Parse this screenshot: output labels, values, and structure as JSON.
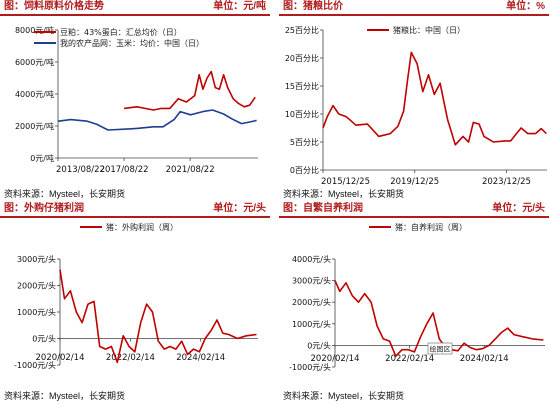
{
  "colors": {
    "red": "#c00000",
    "blue": "#1f3e8f",
    "header": "#b01c1c"
  },
  "chart_data": [
    {
      "type": "line",
      "header": {
        "label": "图：饲料原料价格走势",
        "unit": "单位：元/吨"
      },
      "source": "资料来源：Mysteel，长安期货",
      "ylim": [
        0,
        8000
      ],
      "xlim": [
        "2013-08-22",
        "2025-10-01"
      ],
      "y_ticks": [
        "0元/吨",
        "2000元/吨",
        "4000元/吨",
        "6000元/吨",
        "8000元/吨"
      ],
      "x_ticks": [
        "2013/08/22",
        "2017/08/22",
        "2021/08/22"
      ],
      "series": [
        {
          "name": "豆粕：43%蛋白：汇总均价（日）",
          "color": "#c00000",
          "x": [
            "2017-08-22",
            "2018-06-01",
            "2018-12-01",
            "2019-06-01",
            "2019-12-01",
            "2020-06-01",
            "2020-12-01",
            "2021-06-01",
            "2021-12-01",
            "2022-03-10",
            "2022-06-01",
            "2022-09-01",
            "2022-12-01",
            "2023-03-01",
            "2023-06-01",
            "2023-09-01",
            "2023-12-01",
            "2024-04-01",
            "2024-08-01",
            "2024-12-01",
            "2025-04-01",
            "2025-08-01"
          ],
          "values": [
            3100,
            3200,
            3100,
            3000,
            3100,
            3100,
            3700,
            3500,
            3900,
            5200,
            4300,
            5000,
            5400,
            4400,
            4300,
            5200,
            4400,
            3700,
            3400,
            3200,
            3300,
            3800
          ]
        },
        {
          "name": "我的农产品网：玉米：均价：中国（日）",
          "color": "#1f3e8f",
          "x": [
            "2013-08-22",
            "2014-06-01",
            "2015-06-01",
            "2016-01-01",
            "2016-09-01",
            "2017-08-22",
            "2018-06-01",
            "2019-06-01",
            "2020-01-01",
            "2020-09-01",
            "2021-01-15",
            "2021-09-01",
            "2022-06-01",
            "2023-01-01",
            "2023-09-01",
            "2024-03-01",
            "2024-10-01",
            "2025-04-01",
            "2025-09-01"
          ],
          "values": [
            2300,
            2400,
            2300,
            2100,
            1750,
            1800,
            1850,
            1950,
            1950,
            2400,
            2900,
            2700,
            2900,
            3000,
            2750,
            2450,
            2150,
            2250,
            2350
          ]
        }
      ]
    },
    {
      "type": "line",
      "header": {
        "label": "图：猪粮比价",
        "unit": "单位：%"
      },
      "source": "资料来源：Mysteel，长安期货",
      "ylim": [
        0,
        25
      ],
      "xlim": [
        "2015-12-25",
        "2025-10-01"
      ],
      "y_ticks": [
        "0百分比",
        "5百分比",
        "10百分比",
        "15百分比",
        "20百分比",
        "25百分比"
      ],
      "x_ticks": [
        "2015/12/25",
        "2019/12/25",
        "2023/12/25"
      ],
      "series": [
        {
          "name": "猪粮比：中国（日）",
          "color": "#c00000",
          "x": [
            "2015-12-25",
            "2016-03-01",
            "2016-06-01",
            "2016-09-01",
            "2017-01-01",
            "2017-06-01",
            "2017-12-01",
            "2018-06-01",
            "2018-12-01",
            "2019-04-01",
            "2019-07-01",
            "2019-09-01",
            "2019-11-01",
            "2020-02-01",
            "2020-05-01",
            "2020-08-01",
            "2020-11-01",
            "2021-02-01",
            "2021-06-01",
            "2021-10-01",
            "2022-02-01",
            "2022-05-01",
            "2022-07-15",
            "2022-10-15",
            "2023-01-01",
            "2023-06-01",
            "2023-12-01",
            "2024-03-01",
            "2024-06-01",
            "2024-08-15",
            "2024-12-01",
            "2025-04-01",
            "2025-07-01",
            "2025-09-20"
          ],
          "values": [
            7.5,
            9.5,
            11.5,
            10,
            9.5,
            8,
            8.2,
            6,
            6.5,
            7.8,
            10.5,
            16,
            21,
            19,
            14,
            17,
            13.5,
            15.5,
            9,
            4.5,
            6,
            5,
            8.5,
            8.2,
            6,
            5,
            5.2,
            5.2,
            6.5,
            7.5,
            6.5,
            6.5,
            7.4,
            6.5
          ]
        }
      ]
    },
    {
      "type": "line",
      "header": {
        "label": "图：外购仔猪利润",
        "unit": "单位：元/头"
      },
      "source": "资料来源：Mysteel，长安期货",
      "ylim": [
        -1000,
        3000
      ],
      "xlim": [
        "2020-02-14",
        "2025-10-01"
      ],
      "y_ticks": [
        "-1000元/头",
        "0元/头",
        "1000元/头",
        "2000元/头",
        "3000元/头"
      ],
      "x_ticks": [
        "2020/02/14",
        "2022/02/14",
        "2024/02/14"
      ],
      "series": [
        {
          "name": "猪：外购利润（周）",
          "color": "#c00000",
          "x": [
            "2020-02-14",
            "2020-04-01",
            "2020-06-01",
            "2020-08-01",
            "2020-10-01",
            "2020-12-01",
            "2021-02-01",
            "2021-04-01",
            "2021-06-01",
            "2021-08-01",
            "2021-10-01",
            "2021-12-01",
            "2022-02-01",
            "2022-04-01",
            "2022-06-01",
            "2022-08-01",
            "2022-10-01",
            "2022-12-01",
            "2023-02-01",
            "2023-04-01",
            "2023-06-01",
            "2023-08-01",
            "2023-10-01",
            "2023-12-01",
            "2024-02-01",
            "2024-04-01",
            "2024-06-01",
            "2024-08-01",
            "2024-10-01",
            "2024-12-01",
            "2025-03-01",
            "2025-06-01",
            "2025-09-15"
          ],
          "values": [
            2600,
            1500,
            1800,
            1000,
            600,
            1300,
            1400,
            -300,
            -400,
            -300,
            -900,
            100,
            -300,
            -500,
            600,
            1300,
            1000,
            -100,
            -400,
            -300,
            -400,
            -100,
            -600,
            -400,
            -500,
            0,
            300,
            700,
            200,
            150,
            0,
            100,
            150
          ]
        }
      ]
    },
    {
      "type": "line",
      "header": {
        "label": "图：自繁自养利润",
        "unit": "单位：元/头"
      },
      "source": "资料来源：Mysteel，长安期货",
      "annotation": "绘图区",
      "ylim": [
        -1000,
        4000
      ],
      "xlim": [
        "2020-02-14",
        "2025-10-01"
      ],
      "y_ticks": [
        "-1000元/头",
        "0元/头",
        "1000元/头",
        "2000元/头",
        "3000元/头",
        "4000元/头"
      ],
      "x_ticks": [
        "2020/02/14",
        "2022/02/14",
        "2024/02/14"
      ],
      "series": [
        {
          "name": "猪：自养利润（周）",
          "color": "#c00000",
          "x": [
            "2020-02-14",
            "2020-04-01",
            "2020-06-01",
            "2020-08-01",
            "2020-10-01",
            "2020-12-01",
            "2021-02-01",
            "2021-04-01",
            "2021-06-01",
            "2021-08-01",
            "2021-10-01",
            "2021-12-01",
            "2022-02-01",
            "2022-04-01",
            "2022-06-01",
            "2022-08-01",
            "2022-10-01",
            "2022-12-01",
            "2023-02-01",
            "2023-04-01",
            "2023-06-01",
            "2023-08-01",
            "2023-10-01",
            "2023-12-01",
            "2024-02-01",
            "2024-04-01",
            "2024-06-01",
            "2024-08-01",
            "2024-10-01",
            "2024-12-01",
            "2025-03-01",
            "2025-06-01",
            "2025-09-15"
          ],
          "values": [
            3000,
            2500,
            2900,
            2300,
            2000,
            2400,
            2000,
            900,
            300,
            200,
            -500,
            -200,
            -200,
            -300,
            400,
            1000,
            1500,
            300,
            -100,
            -200,
            -250,
            100,
            -100,
            -200,
            -150,
            0,
            300,
            600,
            800,
            500,
            400,
            300,
            250
          ]
        }
      ]
    }
  ]
}
